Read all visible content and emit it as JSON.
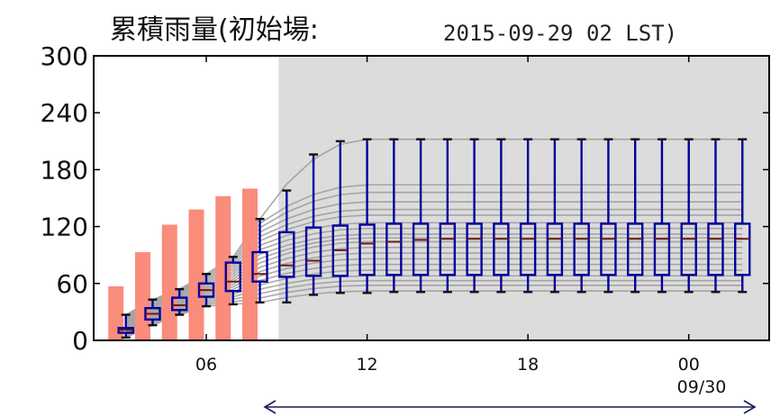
{
  "chart_data": {
    "type": "box",
    "title": "累積雨量(初始場:",
    "init_time": "2015-09-29 02 LST)",
    "xlabel": "",
    "ylabel": "",
    "ylim": [
      0,
      300
    ],
    "yticks": [
      "0",
      "60",
      "120",
      "180",
      "240",
      "300"
    ],
    "xticks": [
      {
        "hour": 6,
        "label": "06"
      },
      {
        "hour": 12,
        "label": "12"
      },
      {
        "hour": 18,
        "label": "18"
      },
      {
        "hour": 24,
        "label": "00"
      }
    ],
    "date_label": "09/30",
    "forecast_shading_start_hour": 8.7,
    "colors": {
      "observed_bar": "#fa8c7c",
      "box": "#00009c",
      "member_line": "#9a9a9a",
      "forecast_shade": "#dcdcdc"
    },
    "observed": {
      "hours": [
        3,
        4,
        5,
        6,
        7,
        8
      ],
      "values": [
        57,
        93,
        122,
        138,
        152,
        160
      ]
    },
    "ensemble_boxes": [
      {
        "hour": 3,
        "min": 3,
        "q1": 8,
        "median": 11,
        "q3": 13,
        "max": 27
      },
      {
        "hour": 4,
        "min": 16,
        "q1": 22,
        "median": 28,
        "q3": 34,
        "max": 43
      },
      {
        "hour": 5,
        "min": 27,
        "q1": 32,
        "median": 37,
        "q3": 45,
        "max": 54
      },
      {
        "hour": 6,
        "min": 36,
        "q1": 46,
        "median": 53,
        "q3": 60,
        "max": 70
      },
      {
        "hour": 7,
        "min": 38,
        "q1": 52,
        "median": 62,
        "q3": 82,
        "max": 88
      },
      {
        "hour": 8,
        "min": 40,
        "q1": 62,
        "median": 70,
        "q3": 93,
        "max": 128
      },
      {
        "hour": 9,
        "min": 40,
        "q1": 67,
        "median": 79,
        "q3": 114,
        "max": 158
      },
      {
        "hour": 10,
        "min": 48,
        "q1": 68,
        "median": 84,
        "q3": 119,
        "max": 196
      },
      {
        "hour": 11,
        "min": 50,
        "q1": 68,
        "median": 95,
        "q3": 121,
        "max": 210
      },
      {
        "hour": 12,
        "min": 50,
        "q1": 69,
        "median": 102,
        "q3": 122,
        "max": 212
      },
      {
        "hour": 13,
        "min": 51,
        "q1": 69,
        "median": 104,
        "q3": 123,
        "max": 212
      },
      {
        "hour": 14,
        "min": 51,
        "q1": 69,
        "median": 106,
        "q3": 123,
        "max": 212
      },
      {
        "hour": 15,
        "min": 51,
        "q1": 69,
        "median": 107,
        "q3": 123,
        "max": 212
      },
      {
        "hour": 16,
        "min": 51,
        "q1": 69,
        "median": 107,
        "q3": 123,
        "max": 212
      },
      {
        "hour": 17,
        "min": 51,
        "q1": 69,
        "median": 107,
        "q3": 123,
        "max": 212
      },
      {
        "hour": 18,
        "min": 51,
        "q1": 69,
        "median": 107,
        "q3": 123,
        "max": 212
      },
      {
        "hour": 19,
        "min": 51,
        "q1": 69,
        "median": 107,
        "q3": 123,
        "max": 212
      },
      {
        "hour": 20,
        "min": 51,
        "q1": 69,
        "median": 107,
        "q3": 123,
        "max": 212
      },
      {
        "hour": 21,
        "min": 51,
        "q1": 69,
        "median": 107,
        "q3": 123,
        "max": 212
      },
      {
        "hour": 22,
        "min": 51,
        "q1": 69,
        "median": 107,
        "q3": 123,
        "max": 212
      },
      {
        "hour": 23,
        "min": 51,
        "q1": 69,
        "median": 107,
        "q3": 123,
        "max": 212
      },
      {
        "hour": 24,
        "min": 51,
        "q1": 69,
        "median": 107,
        "q3": 123,
        "max": 212
      },
      {
        "hour": 25,
        "min": 51,
        "q1": 69,
        "median": 107,
        "q3": 123,
        "max": 212
      },
      {
        "hour": 26,
        "min": 51,
        "q1": 69,
        "median": 107,
        "q3": 123,
        "max": 212
      }
    ],
    "member_final_values": [
      52,
      58,
      63,
      68,
      74,
      80,
      86,
      92,
      98,
      104,
      108,
      112,
      118,
      124,
      132,
      138,
      146,
      156,
      164,
      212
    ]
  }
}
